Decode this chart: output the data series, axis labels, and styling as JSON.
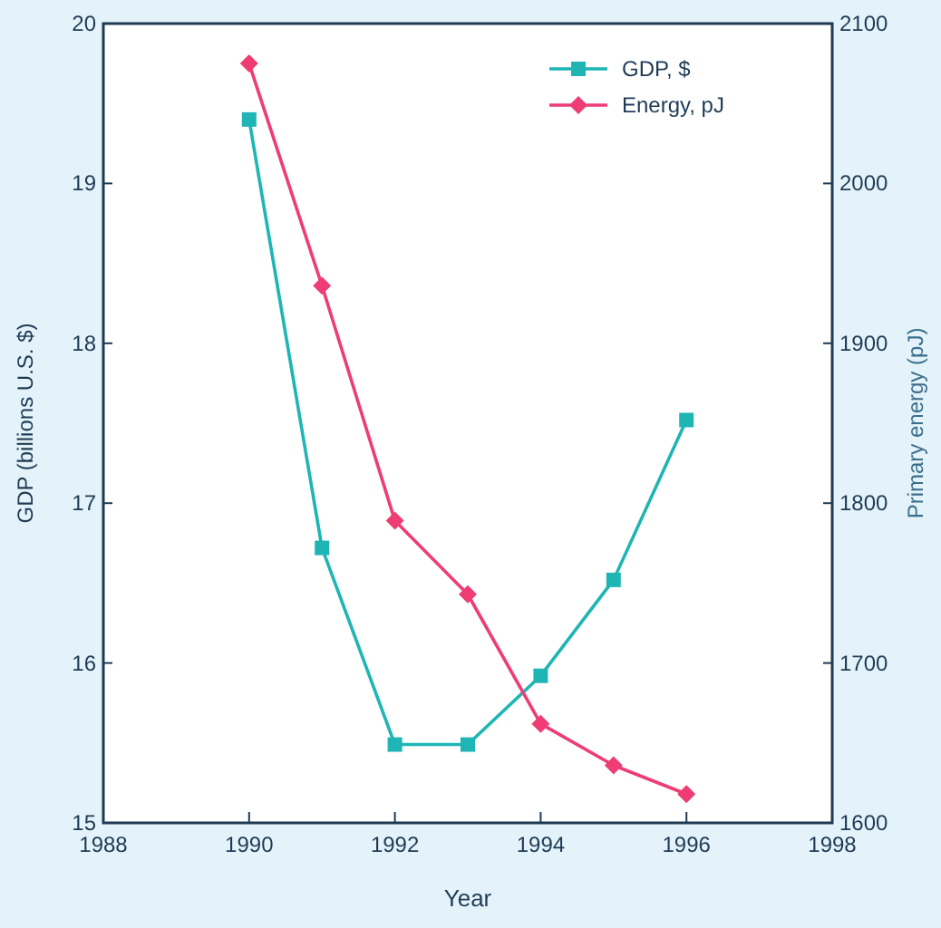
{
  "chart_data": {
    "type": "line",
    "xlabel": "Year",
    "ylabel": "GDP (billions U.S. $)",
    "y2label": "Primary energy (pJ)",
    "x": [
      1990,
      1991,
      1992,
      1993,
      1994,
      1995,
      1996
    ],
    "series": [
      {
        "name": "GDP, $",
        "color": "#1fb5b5",
        "marker": "square",
        "values": [
          19.4,
          16.72,
          15.49,
          15.49,
          15.92,
          16.52,
          17.52
        ]
      },
      {
        "name": "Energy, pJ",
        "color": "#ee3d74",
        "marker": "diamond",
        "axis": "y2",
        "values": [
          2075,
          1936,
          1789,
          1743,
          1662,
          1636,
          1618
        ]
      }
    ],
    "xlim": [
      1988,
      1998
    ],
    "xticks": [
      1988,
      1990,
      1992,
      1994,
      1996,
      1998
    ],
    "ylim": [
      15,
      20
    ],
    "yticks": [
      15,
      16,
      17,
      18,
      19,
      20
    ],
    "y2lim": [
      1600,
      2100
    ],
    "y2ticks": [
      1600,
      1700,
      1800,
      1900,
      2000,
      2100
    ],
    "grid": false,
    "legend": "top right",
    "line_style": "solid"
  }
}
